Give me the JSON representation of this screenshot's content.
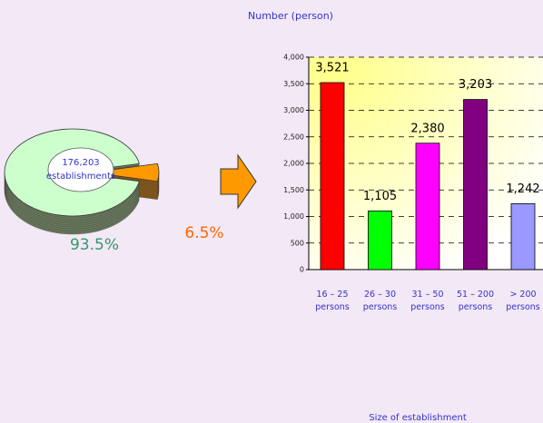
{
  "chart_data": [
    {
      "type": "pie",
      "values": [
        93.5,
        6.5
      ],
      "value_labels": [
        "93.5%",
        "6.5%"
      ],
      "colors": [
        "#ccffcc",
        "#ff9900"
      ],
      "side_colors": [
        "#6b7a5e",
        "#8a5a1a"
      ],
      "label_colors": [
        "#339966",
        "#ff6600"
      ],
      "exploded": [
        false,
        true
      ],
      "center_text": "176,203",
      "center_subtext": "establishments"
    },
    {
      "type": "bar",
      "title": "Number (person)",
      "xlabel": "Size of establishment",
      "categories": [
        "16 – 25 persons",
        "26 – 30 persons",
        "31 – 50 persons",
        "51 – 200 persons",
        "> 200 persons"
      ],
      "values": [
        3521,
        1105,
        2380,
        3203,
        1242
      ],
      "value_labels": [
        "3,521",
        "1,105",
        "2,380",
        "3,203",
        "1,242"
      ],
      "colors": [
        "#ff0000",
        "#00ff00",
        "#ff00ff",
        "#800080",
        "#9999ff"
      ],
      "ylim": [
        0,
        4000
      ],
      "yticks": [
        0,
        500,
        {
          "value": 1000,
          "label": "1,000"
        },
        {
          "value": 1500,
          "label": "1,500"
        },
        {
          "value": 2000,
          "label": "2,000"
        },
        {
          "value": 2500,
          "label": "2,500"
        },
        {
          "value": 3000,
          "label": "3,000"
        },
        {
          "value": 3500,
          "label": "3,500"
        },
        {
          "value": 4000,
          "label": "4,000"
        }
      ],
      "grid": true
    }
  ]
}
